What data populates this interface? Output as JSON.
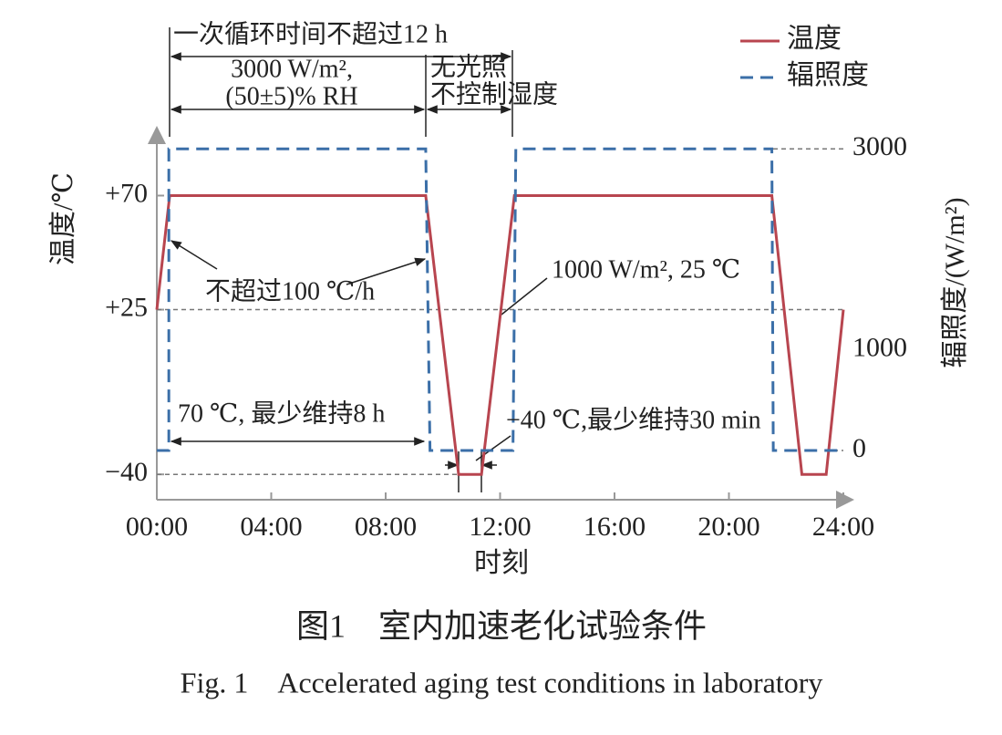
{
  "chart_data": {
    "type": "line",
    "caption": "图1　室内加速老化试验条件",
    "caption_en": "Fig. 1　Accelerated aging test conditions in laboratory",
    "x_label": "时刻",
    "y_label": "温度/℃",
    "y2_label": "辐照度/(W/m²)",
    "xlim": [
      0,
      24
    ],
    "xticks": [
      {
        "value": 0,
        "label": "00:00"
      },
      {
        "value": 4,
        "label": "04:00"
      },
      {
        "value": 8,
        "label": "08:00"
      },
      {
        "value": 12,
        "label": "12:00"
      },
      {
        "value": 16,
        "label": "16:00"
      },
      {
        "value": 20,
        "label": "20:00"
      },
      {
        "value": 24,
        "label": "24:00"
      }
    ],
    "ylim": [
      -50,
      95
    ],
    "yticks": [
      {
        "value": -40,
        "label": "−40"
      },
      {
        "value": 25,
        "label": "+25"
      },
      {
        "value": 70,
        "label": "+70"
      }
    ],
    "y2lim": [
      -490,
      3165
    ],
    "y2ticks": [
      0,
      1000,
      3000
    ],
    "series": [
      {
        "name": "温度",
        "color": "#b8454f",
        "x": [
          0,
          0.45,
          9.4,
          10.55,
          11.35,
          12.5,
          21.5,
          22.55,
          23.4,
          24
        ],
        "values": [
          25,
          70,
          70,
          -40,
          -40,
          70,
          70,
          -40,
          -40,
          25
        ]
      },
      {
        "name": "辐照度",
        "color": "#3b6fa8",
        "axis": "y2",
        "dashed": true,
        "x": [
          0,
          0.42,
          0.42,
          9.4,
          9.55,
          12.45,
          12.55,
          21.5,
          21.55,
          24
        ],
        "values": [
          0,
          0,
          3000,
          3000,
          0,
          0,
          3000,
          3000,
          0,
          0
        ]
      }
    ],
    "annotations": [
      "一次循环时间不超过12 h",
      "3000 W/m²,",
      "(50±5)% RH",
      "无光照",
      "不控制湿度",
      "不超过100 ℃/h",
      "1000 W/m², 25 ℃",
      "70 ℃, 最少维持8 h",
      "−40 ℃,最少维持30 min"
    ]
  }
}
